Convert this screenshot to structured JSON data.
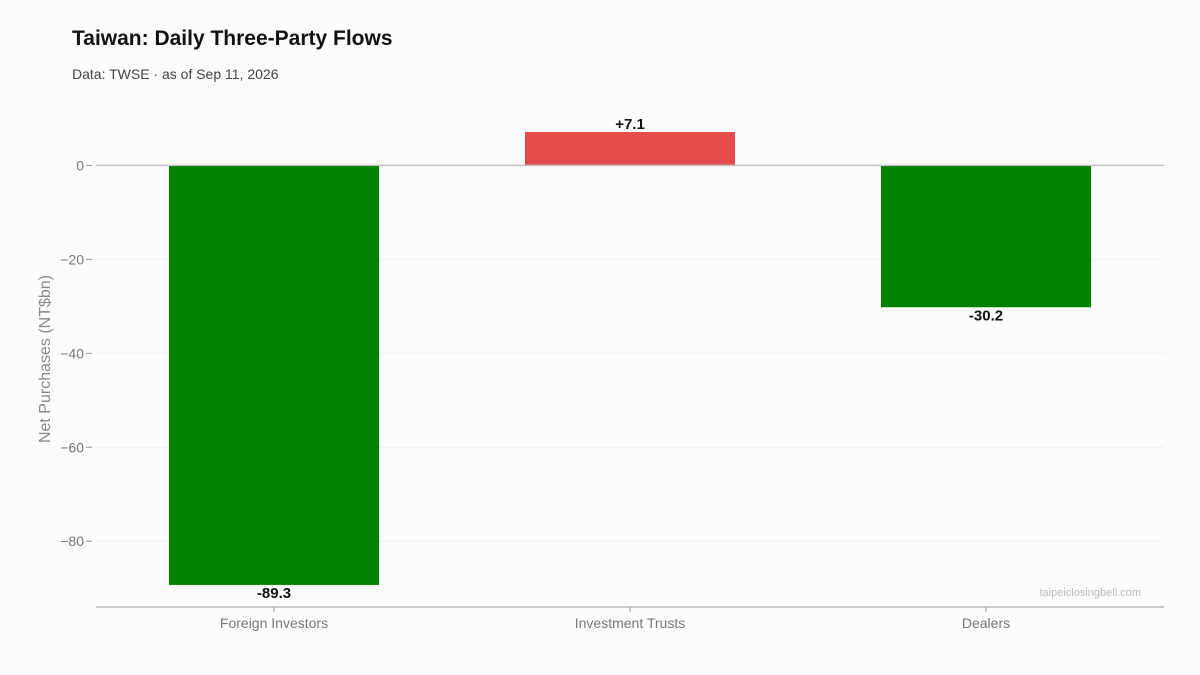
{
  "header": {
    "title": "Taiwan: Daily Three-Party Flows",
    "subtitle": "Data: TWSE · as of Sep 11, 2026"
  },
  "watermark": "taipeiclosingbell.com",
  "colors": {
    "positive": "#e54b4b",
    "negative": "#008000",
    "zero_line": "#c0c0c0",
    "grid": "#f0f0ee",
    "axis": "#999999"
  },
  "chart_data": {
    "type": "bar",
    "title": "Taiwan: Daily Three-Party Flows",
    "subtitle": "Data: TWSE · as of Sep 11, 2026",
    "xlabel": "",
    "ylabel": "Net Purchases (NT$bn)",
    "categories": [
      "Foreign Investors",
      "Investment Trusts",
      "Dealers"
    ],
    "values": [
      -89.3,
      7.1,
      -30.2
    ],
    "value_labels": [
      "-89.3",
      "+7.1",
      "-30.2"
    ],
    "ylim": [
      -94,
      12
    ],
    "yticks": [
      0,
      -20,
      -40,
      -60,
      -80
    ],
    "ytick_labels": [
      "0",
      "−20",
      "−40",
      "−60",
      "−80"
    ],
    "grid": true,
    "legend": "none"
  }
}
